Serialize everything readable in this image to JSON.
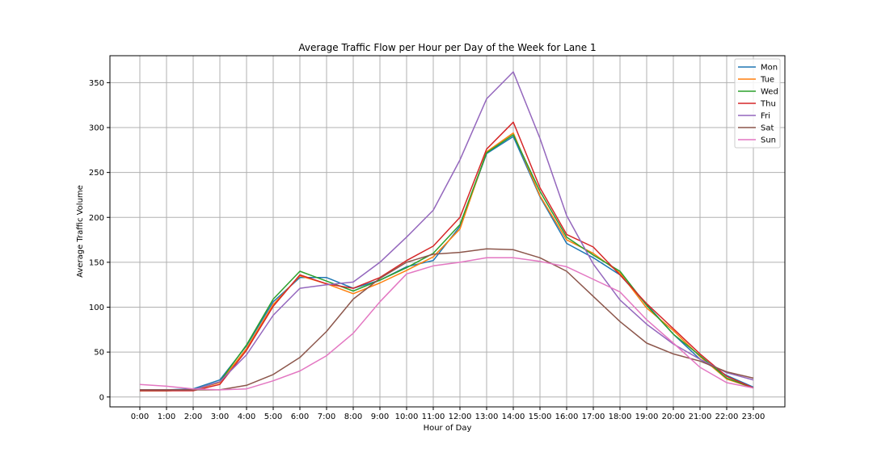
{
  "chart_data": {
    "type": "line",
    "title": "Average Traffic Flow per Hour per Day of the Week for Lane 1",
    "xlabel": "Hour of Day",
    "ylabel": "Average Traffic Volume",
    "categories": [
      "0:00",
      "1:00",
      "2:00",
      "3:00",
      "4:00",
      "5:00",
      "6:00",
      "7:00",
      "8:00",
      "9:00",
      "10:00",
      "11:00",
      "12:00",
      "13:00",
      "14:00",
      "15:00",
      "16:00",
      "17:00",
      "18:00",
      "19:00",
      "20:00",
      "21:00",
      "22:00",
      "23:00"
    ],
    "yticks": [
      0,
      50,
      100,
      150,
      200,
      250,
      300,
      350
    ],
    "ylim": [
      -11,
      380
    ],
    "grid": true,
    "legend_position": "top-right",
    "series": [
      {
        "name": "Mon",
        "color": "#1f77b4",
        "values": [
          8,
          8,
          9,
          19,
          57,
          106,
          133,
          133,
          121,
          130,
          145,
          152,
          190,
          271,
          290,
          223,
          171,
          155,
          136,
          103,
          70,
          42,
          24,
          11
        ]
      },
      {
        "name": "Tue",
        "color": "#ff7f0e",
        "values": [
          7,
          7,
          8,
          16,
          54,
          103,
          135,
          126,
          115,
          127,
          141,
          156,
          187,
          273,
          294,
          224,
          175,
          160,
          138,
          99,
          74,
          45,
          20,
          10
        ]
      },
      {
        "name": "Wed",
        "color": "#2ca02c",
        "values": [
          7,
          7,
          8,
          17,
          58,
          109,
          140,
          129,
          118,
          130,
          144,
          160,
          192,
          272,
          292,
          229,
          178,
          158,
          140,
          102,
          70,
          46,
          21,
          10
        ]
      },
      {
        "name": "Thu",
        "color": "#d62728",
        "values": [
          7,
          7,
          7,
          14,
          52,
          101,
          136,
          126,
          121,
          133,
          152,
          168,
          200,
          276,
          306,
          233,
          181,
          167,
          136,
          104,
          76,
          48,
          23,
          10
        ]
      },
      {
        "name": "Fri",
        "color": "#9467bd",
        "values": [
          8,
          8,
          8,
          17,
          47,
          91,
          121,
          125,
          128,
          150,
          178,
          208,
          264,
          332,
          362,
          288,
          202,
          148,
          108,
          81,
          59,
          42,
          27,
          19
        ]
      },
      {
        "name": "Sat",
        "color": "#8c564b",
        "values": [
          8,
          8,
          8,
          8,
          13,
          25,
          44,
          73,
          109,
          132,
          150,
          159,
          161,
          165,
          164,
          155,
          140,
          112,
          84,
          60,
          48,
          40,
          28,
          21
        ]
      },
      {
        "name": "Sun",
        "color": "#e377c2",
        "values": [
          14,
          12,
          9,
          8,
          9,
          18,
          29,
          46,
          71,
          106,
          137,
          146,
          150,
          155,
          155,
          151,
          145,
          131,
          117,
          86,
          60,
          33,
          16,
          10
        ]
      }
    ]
  }
}
